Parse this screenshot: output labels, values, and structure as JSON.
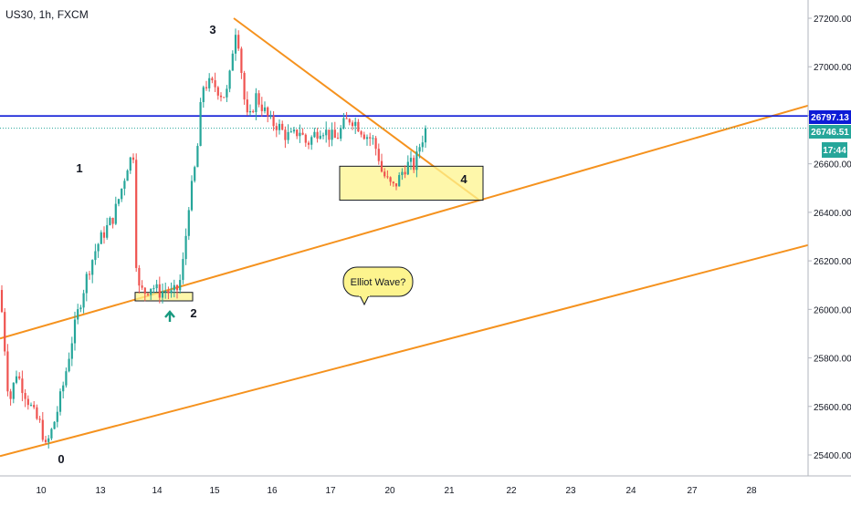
{
  "header": {
    "symbol": "US30, 1h, FXCM"
  },
  "price_axis": {
    "ticks": [
      "27200.00",
      "27000.00",
      "26800.00",
      "26600.00",
      "26400.00",
      "26200.00",
      "26000.00",
      "25800.00",
      "25600.00",
      "25400.00"
    ],
    "tick_values": [
      27200,
      27000,
      26800,
      26600,
      26400,
      26200,
      26000,
      25800,
      25600,
      25400
    ],
    "labels": {
      "level": {
        "text": "26797.13",
        "value": 26797.13,
        "color": "#0d1bd6"
      },
      "last_price": {
        "text": "26746.51",
        "value": 26746.51,
        "color": "#26a69a"
      },
      "countdown": {
        "text": "17:44",
        "color": "#26a69a"
      }
    }
  },
  "time_axis": {
    "ticks": [
      "10",
      "13",
      "14",
      "15",
      "16",
      "17",
      "20",
      "21",
      "22",
      "23",
      "24",
      "27",
      "28"
    ]
  },
  "annotations": {
    "waves": [
      "0",
      "1",
      "2",
      "3",
      "4"
    ],
    "callout": "Elliot Wave?"
  },
  "colors": {
    "up": "#26a69a",
    "down": "#ef5350",
    "trend": "#f5921e",
    "level": "#0d1bd6",
    "box_fill": "#fdf48e",
    "arrow": "#17997f"
  },
  "chart_data": {
    "type": "candlestick",
    "title": "US30, 1h, FXCM",
    "ylim": [
      25300,
      27320
    ],
    "y_ticks": [
      25400,
      25600,
      25800,
      26000,
      26200,
      26400,
      26600,
      26800,
      27000,
      27200
    ],
    "x_ticks": [
      "10",
      "13",
      "14",
      "15",
      "16",
      "17",
      "20",
      "21",
      "22",
      "23",
      "24",
      "27",
      "28"
    ],
    "grid": false,
    "horizontal_level": 26797.13,
    "last_price": 26746.51,
    "price_path": [
      [
        0,
        26080
      ],
      [
        4,
        25900
      ],
      [
        10,
        25610
      ],
      [
        18,
        25740
      ],
      [
        28,
        25650
      ],
      [
        38,
        25560
      ],
      [
        45,
        25520
      ],
      [
        50,
        25430
      ],
      [
        55,
        25480
      ],
      [
        62,
        25570
      ],
      [
        70,
        25700
      ],
      [
        78,
        25860
      ],
      [
        86,
        26000
      ],
      [
        96,
        26150
      ],
      [
        106,
        26260
      ],
      [
        116,
        26330
      ],
      [
        124,
        26380
      ],
      [
        132,
        26480
      ],
      [
        140,
        26600
      ],
      [
        146,
        26640
      ],
      [
        150,
        26090
      ],
      [
        158,
        26070
      ],
      [
        166,
        26100
      ],
      [
        174,
        26070
      ],
      [
        182,
        26080
      ],
      [
        188,
        26060
      ],
      [
        196,
        26090
      ],
      [
        202,
        26230
      ],
      [
        206,
        26420
      ],
      [
        212,
        26540
      ],
      [
        218,
        26720
      ],
      [
        221,
        26920
      ],
      [
        228,
        26930
      ],
      [
        236,
        26920
      ],
      [
        244,
        26880
      ],
      [
        250,
        26900
      ],
      [
        254,
        27050
      ],
      [
        259,
        27180
      ],
      [
        263,
        27040
      ],
      [
        267,
        26880
      ],
      [
        272,
        26760
      ],
      [
        280,
        26880
      ],
      [
        288,
        26830
      ],
      [
        296,
        26770
      ],
      [
        304,
        26760
      ],
      [
        312,
        26720
      ],
      [
        320,
        26710
      ],
      [
        328,
        26740
      ],
      [
        336,
        26680
      ],
      [
        344,
        26720
      ],
      [
        352,
        26750
      ],
      [
        360,
        26720
      ],
      [
        368,
        26700
      ],
      [
        376,
        26760
      ],
      [
        384,
        26790
      ],
      [
        392,
        26760
      ],
      [
        400,
        26720
      ],
      [
        408,
        26700
      ],
      [
        414,
        26640
      ],
      [
        418,
        26570
      ],
      [
        424,
        26530
      ],
      [
        430,
        26500
      ],
      [
        436,
        26530
      ],
      [
        442,
        26580
      ],
      [
        448,
        26600
      ],
      [
        454,
        26590
      ],
      [
        460,
        26680
      ],
      [
        466,
        26740
      ]
    ],
    "trendlines": [
      {
        "from": [
          0,
          25880
        ],
        "to": [
          885,
          26840
        ]
      },
      {
        "from": [
          0,
          25395
        ],
        "to": [
          885,
          26265
        ]
      },
      {
        "from": [
          256,
          27200
        ],
        "to": [
          525,
          26450
        ]
      }
    ],
    "zones": [
      {
        "from_x": 148,
        "to_x": 211,
        "low": 26035,
        "high": 26070,
        "label": "2"
      },
      {
        "from_x": 372,
        "to_x": 529,
        "low": 26450,
        "high": 26590,
        "label": "4"
      }
    ]
  }
}
